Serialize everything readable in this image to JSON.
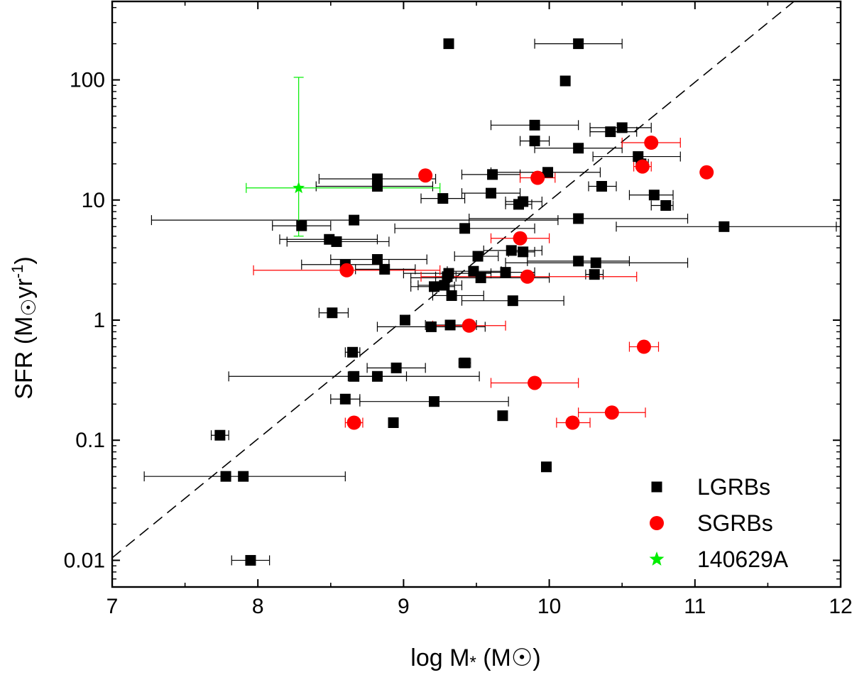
{
  "chart_data": {
    "type": "scatter",
    "title": "",
    "xlabel": "log M* (M☉)",
    "ylabel": "SFR (M☉yr⁻¹)",
    "x_axis": {
      "label_text": "log M",
      "label_sub": "*",
      "label_unit": " (M",
      "label_unit_end": ")"
    },
    "y_axis": {
      "label_text": "SFR (M",
      "label_unit": "yr",
      "label_exp": "-1",
      "label_end": ")"
    },
    "xlim": [
      7,
      12
    ],
    "ylim": [
      0.006,
      450
    ],
    "yscale": "log",
    "xticks": [
      7,
      8,
      9,
      10,
      11,
      12
    ],
    "xtick_labels": [
      "7",
      "8",
      "9",
      "10",
      "11",
      "12"
    ],
    "yticks": [
      0.01,
      0.1,
      1,
      10,
      100
    ],
    "ytick_labels": [
      "0.01",
      "0.1",
      "1",
      "10",
      "100"
    ],
    "grid": false,
    "legend_position": "bottom-right",
    "fit_line": {
      "style": "dashed",
      "points": [
        [
          7.0,
          0.0105
        ],
        [
          11.68,
          450
        ]
      ]
    },
    "series": [
      {
        "name": "LGRBs",
        "marker": "square",
        "color": "#000000",
        "points": [
          {
            "x": 9.31,
            "y": 200
          },
          {
            "x": 10.2,
            "y": 200,
            "xerr": [
              9.9,
              10.5
            ]
          },
          {
            "x": 10.11,
            "y": 98
          },
          {
            "x": 9.9,
            "y": 42,
            "xerr": [
              9.6,
              10.2
            ]
          },
          {
            "x": 10.5,
            "y": 40,
            "xerr": [
              10.28,
              10.7
            ]
          },
          {
            "x": 10.42,
            "y": 37,
            "xerr": [
              10.28,
              10.6
            ]
          },
          {
            "x": 9.9,
            "y": 31,
            "xerr": [
              9.8,
              10.0
            ]
          },
          {
            "x": 10.2,
            "y": 27,
            "xerr": [
              9.9,
              10.5
            ]
          },
          {
            "x": 10.61,
            "y": 23,
            "xerr": [
              10.3,
              10.9
            ]
          },
          {
            "x": 10.63,
            "y": 20,
            "xerr": [
              10.6,
              10.68
            ]
          },
          {
            "x": 9.99,
            "y": 17,
            "xerr": [
              9.6,
              10.35
            ]
          },
          {
            "x": 9.61,
            "y": 16.3,
            "xerr": [
              9.4,
              9.8
            ]
          },
          {
            "x": 8.82,
            "y": 15,
            "xerr": [
              8.42,
              9.22
            ]
          },
          {
            "x": 8.82,
            "y": 13,
            "xerr": [
              8.4,
              9.2
            ]
          },
          {
            "x": 10.36,
            "y": 13,
            "xerr": [
              10.27,
              10.46
            ]
          },
          {
            "x": 9.6,
            "y": 11.4,
            "xerr": [
              9.4,
              9.8
            ]
          },
          {
            "x": 10.72,
            "y": 11,
            "xerr": [
              10.55,
              10.85
            ]
          },
          {
            "x": 9.27,
            "y": 10.3,
            "xerr": [
              9.12,
              9.42
            ]
          },
          {
            "x": 9.82,
            "y": 9.7,
            "xerr": [
              9.7,
              9.95
            ]
          },
          {
            "x": 9.79,
            "y": 9.2,
            "xerr": [
              9.7,
              9.88
            ]
          },
          {
            "x": 10.8,
            "y": 9.0,
            "xerr": [
              10.7,
              10.85
            ]
          },
          {
            "x": 8.66,
            "y": 6.8,
            "xerr": [
              7.27,
              10.06
            ]
          },
          {
            "x": 10.2,
            "y": 7.0,
            "xerr": [
              9.45,
              10.95
            ]
          },
          {
            "x": 8.3,
            "y": 6.1,
            "xerr": [
              8.1,
              8.5
            ]
          },
          {
            "x": 11.2,
            "y": 6.0,
            "xerr": [
              10.46,
              11.97
            ]
          },
          {
            "x": 9.42,
            "y": 5.8,
            "xerr": [
              8.94,
              9.9
            ]
          },
          {
            "x": 8.49,
            "y": 4.7,
            "xerr": [
              8.15,
              8.82
            ]
          },
          {
            "x": 8.54,
            "y": 4.5,
            "xerr": [
              8.2,
              8.9
            ]
          },
          {
            "x": 9.74,
            "y": 3.8,
            "xerr": [
              9.55,
              9.95
            ]
          },
          {
            "x": 9.82,
            "y": 3.7,
            "xerr": [
              9.72,
              9.9
            ]
          },
          {
            "x": 9.51,
            "y": 3.4,
            "xerr": [
              9.35,
              9.65
            ]
          },
          {
            "x": 8.82,
            "y": 3.2,
            "xerr": [
              8.5,
              9.16
            ]
          },
          {
            "x": 10.2,
            "y": 3.1,
            "xerr": [
              9.85,
              10.55
            ]
          },
          {
            "x": 10.32,
            "y": 3.0,
            "xerr": [
              9.7,
              10.95
            ]
          },
          {
            "x": 8.6,
            "y": 2.9,
            "xerr": [
              8.3,
              8.9
            ]
          },
          {
            "x": 8.87,
            "y": 2.65,
            "xerr": [
              8.67,
              9.08
            ]
          },
          {
            "x": 9.48,
            "y": 2.55,
            "xerr": [
              9.3,
              9.67
            ]
          },
          {
            "x": 9.7,
            "y": 2.5,
            "xerr": [
              9.5,
              9.9
            ]
          },
          {
            "x": 9.31,
            "y": 2.45,
            "xerr": [
              9.0,
              9.6
            ]
          },
          {
            "x": 9.3,
            "y": 2.3,
            "xerr": [
              9.22,
              9.36
            ]
          },
          {
            "x": 9.53,
            "y": 2.25,
            "xerr": [
              9.05,
              10.0
            ]
          },
          {
            "x": 10.31,
            "y": 2.4,
            "xerr": [
              10.25,
              10.37
            ]
          },
          {
            "x": 9.21,
            "y": 1.9,
            "xerr": [
              9.05,
              9.35
            ]
          },
          {
            "x": 9.28,
            "y": 1.95,
            "xerr": [
              9.1,
              9.4
            ]
          },
          {
            "x": 9.33,
            "y": 1.6,
            "xerr": [
              9.2,
              9.55
            ]
          },
          {
            "x": 9.75,
            "y": 1.45,
            "xerr": [
              9.4,
              10.1
            ]
          },
          {
            "x": 8.51,
            "y": 1.15,
            "xerr": [
              8.42,
              8.62
            ]
          },
          {
            "x": 9.01,
            "y": 1.0
          },
          {
            "x": 9.19,
            "y": 0.88,
            "xerr": [
              8.82,
              9.56
            ]
          },
          {
            "x": 9.32,
            "y": 0.91,
            "xerr": [
              9.15,
              9.5
            ]
          },
          {
            "x": 8.65,
            "y": 0.54,
            "xerr": [
              8.6,
              8.7
            ]
          },
          {
            "x": 9.42,
            "y": 0.44,
            "xerr": [
              9.38,
              9.46
            ]
          },
          {
            "x": 8.95,
            "y": 0.4,
            "xerr": [
              8.75,
              9.15
            ]
          },
          {
            "x": 8.66,
            "y": 0.34,
            "xerr": [
              7.8,
              9.52
            ]
          },
          {
            "x": 8.82,
            "y": 0.34,
            "xerr": [
              8.62,
              9.02
            ]
          },
          {
            "x": 8.6,
            "y": 0.22,
            "xerr": [
              8.5,
              8.7
            ]
          },
          {
            "x": 9.21,
            "y": 0.21,
            "xerr": [
              8.7,
              9.72
            ]
          },
          {
            "x": 9.68,
            "y": 0.16
          },
          {
            "x": 8.93,
            "y": 0.14
          },
          {
            "x": 7.74,
            "y": 0.11,
            "xerr": [
              7.68,
              7.8
            ]
          },
          {
            "x": 9.98,
            "y": 0.06
          },
          {
            "x": 7.78,
            "y": 0.05,
            "xerr": [
              7.22,
              8.6
            ]
          },
          {
            "x": 7.9,
            "y": 0.05
          },
          {
            "x": 7.95,
            "y": 0.01,
            "xerr": [
              7.82,
              8.08
            ]
          }
        ]
      },
      {
        "name": "SGRBs",
        "marker": "circle",
        "color": "#ff0000",
        "points": [
          {
            "x": 10.7,
            "y": 30,
            "xerr": [
              10.5,
              10.9
            ]
          },
          {
            "x": 10.64,
            "y": 19,
            "xerr": [
              10.58,
              10.7
            ]
          },
          {
            "x": 11.08,
            "y": 17
          },
          {
            "x": 9.15,
            "y": 16
          },
          {
            "x": 9.92,
            "y": 15.3,
            "xerr": [
              9.8,
              10.04
            ]
          },
          {
            "x": 9.8,
            "y": 4.8,
            "xerr": [
              9.6,
              10.0
            ]
          },
          {
            "x": 8.61,
            "y": 2.6,
            "xerr": [
              7.97,
              9.25
            ]
          },
          {
            "x": 9.85,
            "y": 2.3,
            "xerr": [
              9.12,
              10.6
            ]
          },
          {
            "x": 9.45,
            "y": 0.9,
            "xerr": [
              9.2,
              9.7
            ]
          },
          {
            "x": 10.65,
            "y": 0.6,
            "xerr": [
              10.55,
              10.75
            ]
          },
          {
            "x": 9.9,
            "y": 0.3,
            "xerr": [
              9.6,
              10.2
            ]
          },
          {
            "x": 10.43,
            "y": 0.17,
            "xerr": [
              10.2,
              10.66
            ]
          },
          {
            "x": 8.66,
            "y": 0.14,
            "xerr": [
              8.6,
              8.72
            ]
          },
          {
            "x": 10.16,
            "y": 0.14,
            "xerr": [
              10.05,
              10.28
            ]
          }
        ]
      },
      {
        "name": "140629A",
        "marker": "star",
        "color": "#00ee00",
        "points": [
          {
            "x": 8.28,
            "y": 12.6,
            "xerr": [
              7.92,
              9.25
            ],
            "yerr": [
              5.0,
              105
            ]
          }
        ]
      }
    ]
  }
}
